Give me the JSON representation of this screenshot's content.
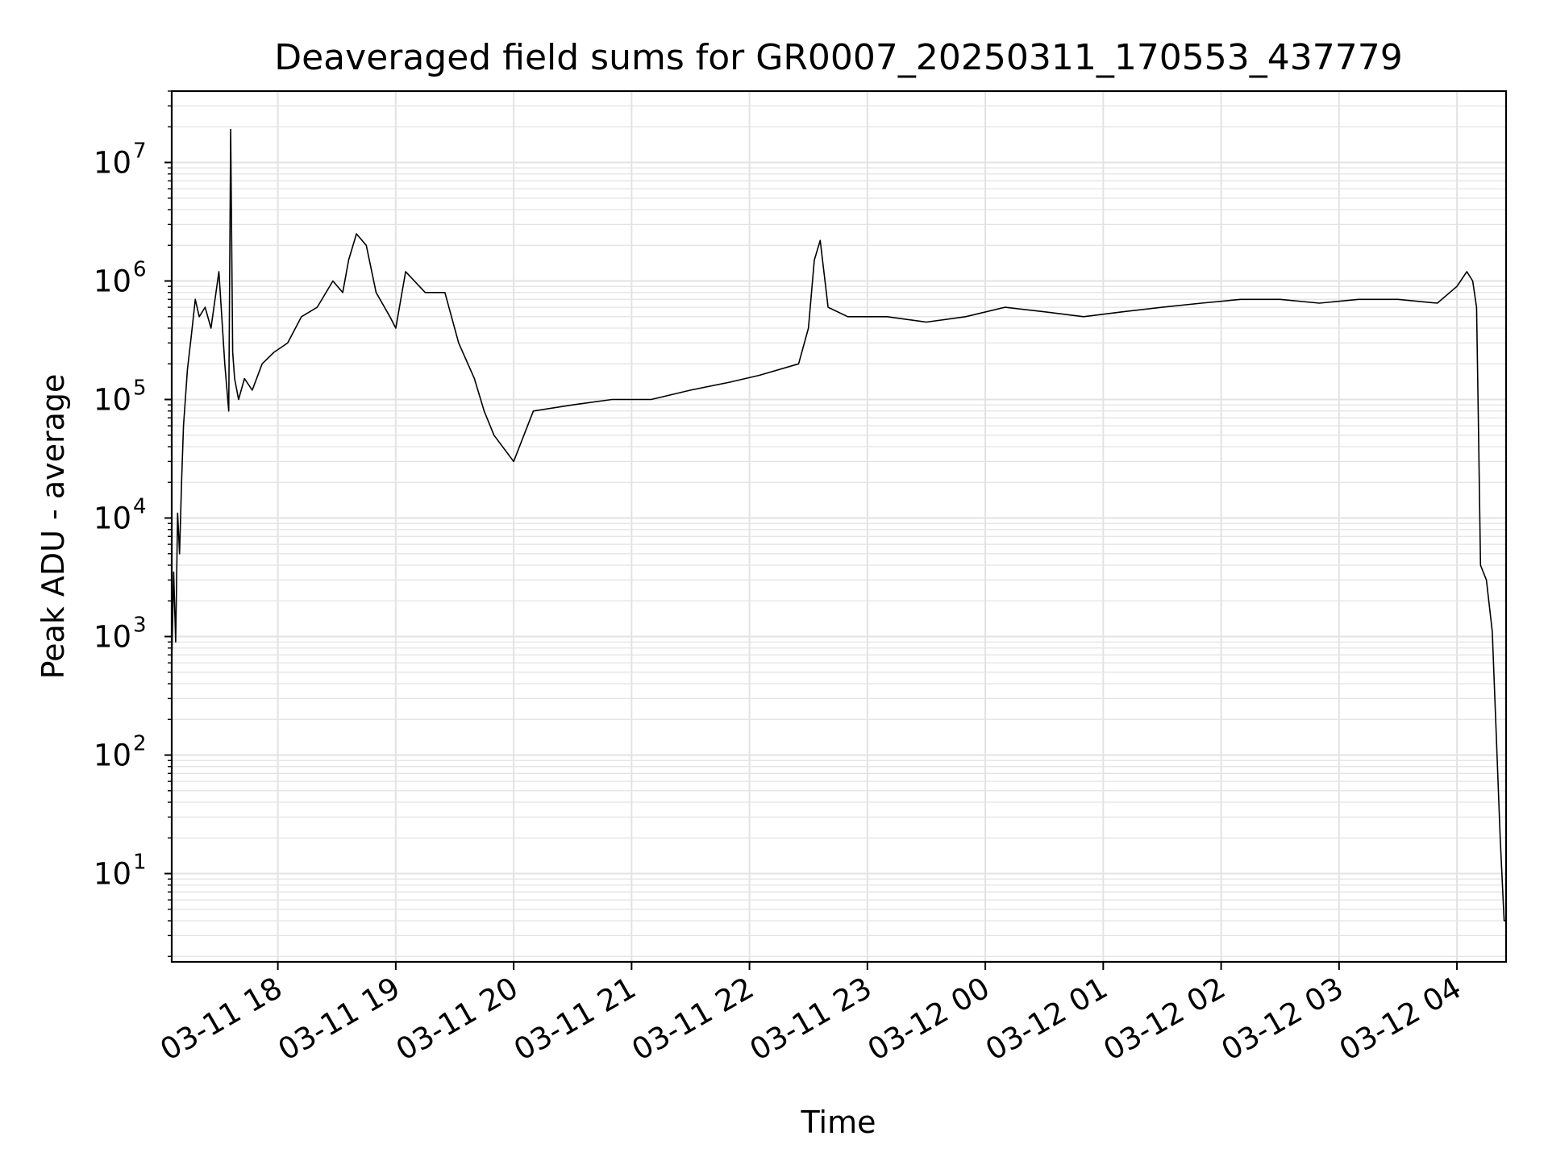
{
  "chart_data": {
    "type": "line",
    "title": "Deaveraged field sums for GR0007_20250311_170553_437779",
    "xlabel": "Time",
    "ylabel": "Peak ADU - average",
    "x_scale": "time",
    "y_scale": "log",
    "xlim": [
      "2025-03-11 17:06",
      "2025-03-12 04:25"
    ],
    "ylim": [
      1.8,
      40000000
    ],
    "x_ticks": [
      "2025-03-11 18:00",
      "2025-03-11 19:00",
      "2025-03-11 20:00",
      "2025-03-11 21:00",
      "2025-03-11 22:00",
      "2025-03-11 23:00",
      "2025-03-12 00:00",
      "2025-03-12 01:00",
      "2025-03-12 02:00",
      "2025-03-12 03:00",
      "2025-03-12 04:00"
    ],
    "x_tick_labels": [
      "03-11 18",
      "03-11 19",
      "03-11 20",
      "03-11 21",
      "03-11 22",
      "03-11 23",
      "03-12 00",
      "03-12 01",
      "03-12 02",
      "03-12 03",
      "03-12 04"
    ],
    "y_ticks": [
      10,
      100,
      1000,
      10000,
      100000,
      1000000,
      10000000
    ],
    "y_tick_labels": [
      {
        "base": "10",
        "exp": "1"
      },
      {
        "base": "10",
        "exp": "2"
      },
      {
        "base": "10",
        "exp": "3"
      },
      {
        "base": "10",
        "exp": "4"
      },
      {
        "base": "10",
        "exp": "5"
      },
      {
        "base": "10",
        "exp": "6"
      },
      {
        "base": "10",
        "exp": "7"
      }
    ],
    "grid": true,
    "line_color": "#000000",
    "grid_color": "#e3e3e3",
    "series": [
      {
        "x": [
          "2025-03-11 17:06",
          "2025-03-11 17:07",
          "2025-03-11 17:08",
          "2025-03-11 17:09",
          "2025-03-11 17:10",
          "2025-03-11 17:11",
          "2025-03-11 17:12",
          "2025-03-11 17:14",
          "2025-03-11 17:16",
          "2025-03-11 17:18",
          "2025-03-11 17:20",
          "2025-03-11 17:23",
          "2025-03-11 17:26",
          "2025-03-11 17:30",
          "2025-03-11 17:33",
          "2025-03-11 17:35",
          "2025-03-11 17:36",
          "2025-03-11 17:37",
          "2025-03-11 17:38",
          "2025-03-11 17:40",
          "2025-03-11 17:43",
          "2025-03-11 17:47",
          "2025-03-11 17:52",
          "2025-03-11 17:58",
          "2025-03-11 18:05",
          "2025-03-11 18:12",
          "2025-03-11 18:20",
          "2025-03-11 18:28",
          "2025-03-11 18:33",
          "2025-03-11 18:36",
          "2025-03-11 18:40",
          "2025-03-11 18:45",
          "2025-03-11 18:50",
          "2025-03-11 18:57",
          "2025-03-11 19:00",
          "2025-03-11 19:05",
          "2025-03-11 19:15",
          "2025-03-11 19:25",
          "2025-03-11 19:32",
          "2025-03-11 19:40",
          "2025-03-11 19:45",
          "2025-03-11 19:50",
          "2025-03-11 20:00",
          "2025-03-11 20:10",
          "2025-03-11 20:30",
          "2025-03-11 20:50",
          "2025-03-11 21:10",
          "2025-03-11 21:30",
          "2025-03-11 21:50",
          "2025-03-11 22:05",
          "2025-03-11 22:25",
          "2025-03-11 22:30",
          "2025-03-11 22:33",
          "2025-03-11 22:36",
          "2025-03-11 22:40",
          "2025-03-11 22:50",
          "2025-03-11 23:10",
          "2025-03-11 23:30",
          "2025-03-11 23:50",
          "2025-03-12 00:10",
          "2025-03-12 00:30",
          "2025-03-12 00:50",
          "2025-03-12 01:10",
          "2025-03-12 01:30",
          "2025-03-12 01:50",
          "2025-03-12 02:10",
          "2025-03-12 02:30",
          "2025-03-12 02:50",
          "2025-03-12 03:10",
          "2025-03-12 03:30",
          "2025-03-12 03:50",
          "2025-03-12 04:00",
          "2025-03-12 04:05",
          "2025-03-12 04:08",
          "2025-03-12 04:10",
          "2025-03-12 04:11",
          "2025-03-12 04:12",
          "2025-03-12 04:15",
          "2025-03-12 04:18",
          "2025-03-12 04:20",
          "2025-03-12 04:22",
          "2025-03-12 04:24",
          "2025-03-12 04:25"
        ],
        "values": [
          600,
          3500,
          900,
          11000,
          5000,
          20000,
          60000,
          180000,
          350000,
          700000,
          500000,
          600000,
          400000,
          1200000,
          200000,
          80000,
          19000000,
          250000,
          150000,
          100000,
          150000,
          120000,
          200000,
          250000,
          300000,
          500000,
          600000,
          1000000,
          800000,
          1500000,
          2500000,
          2000000,
          800000,
          500000,
          400000,
          1200000,
          800000,
          800000,
          300000,
          150000,
          80000,
          50000,
          30000,
          80000,
          90000,
          100000,
          100000,
          120000,
          140000,
          160000,
          200000,
          400000,
          1500000,
          2200000,
          600000,
          500000,
          500000,
          450000,
          500000,
          600000,
          550000,
          500000,
          550000,
          600000,
          650000,
          700000,
          700000,
          650000,
          700000,
          700000,
          650000,
          900000,
          1200000,
          1000000,
          600000,
          50000,
          4000,
          3000,
          1100,
          150,
          20,
          4,
          4
        ]
      }
    ]
  }
}
